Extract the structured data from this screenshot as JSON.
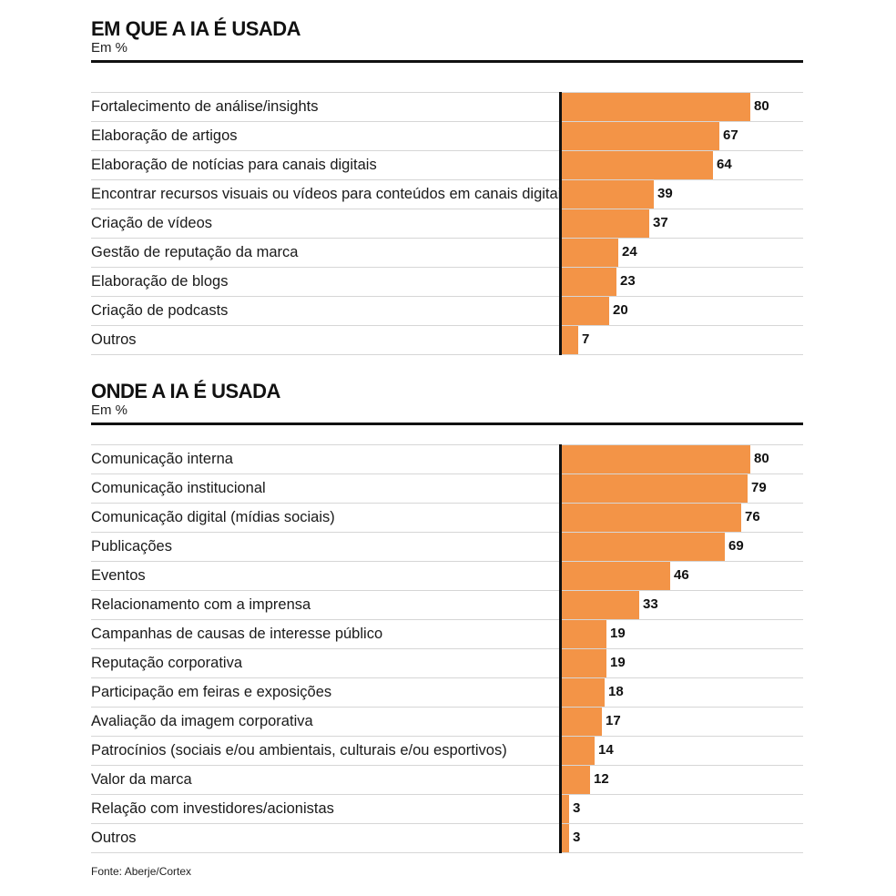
{
  "chart_data": [
    {
      "type": "bar",
      "orientation": "horizontal",
      "title": "EM QUE A IA É USADA",
      "subtitle": "Em %",
      "xlim": [
        0,
        80
      ],
      "categories": [
        "Fortalecimento de análise/insights",
        "Elaboração de artigos",
        "Elaboração de notícias para canais digitais",
        "Encontrar recursos visuais ou vídeos para conteúdos em canais digitais",
        "Criação de vídeos",
        "Gestão de reputação da marca",
        "Elaboração de blogs",
        "Criação de podcasts",
        "Outros"
      ],
      "values": [
        80,
        67,
        64,
        39,
        37,
        24,
        23,
        20,
        7
      ]
    },
    {
      "type": "bar",
      "orientation": "horizontal",
      "title": "ONDE A IA É USADA",
      "subtitle": "Em %",
      "xlim": [
        0,
        80
      ],
      "categories": [
        "Comunicação interna",
        "Comunicação institucional",
        "Comunicação digital (mídias sociais)",
        "Publicações",
        "Eventos",
        "Relacionamento com a imprensa",
        "Campanhas de causas de interesse público",
        "Reputação corporativa",
        "Participação em feiras e exposições",
        "Avaliação da imagem corporativa",
        "Patrocínios (sociais e/ou ambientais, culturais e/ou esportivos)",
        "Valor da marca",
        "Relação com investidores/acionistas",
        "Outros"
      ],
      "values": [
        80,
        79,
        76,
        69,
        46,
        33,
        19,
        19,
        18,
        17,
        14,
        12,
        3,
        3
      ]
    }
  ],
  "colors": {
    "bar": "#f39447",
    "axis": "#111111"
  },
  "source": "Fonte: Aberje/Cortex"
}
